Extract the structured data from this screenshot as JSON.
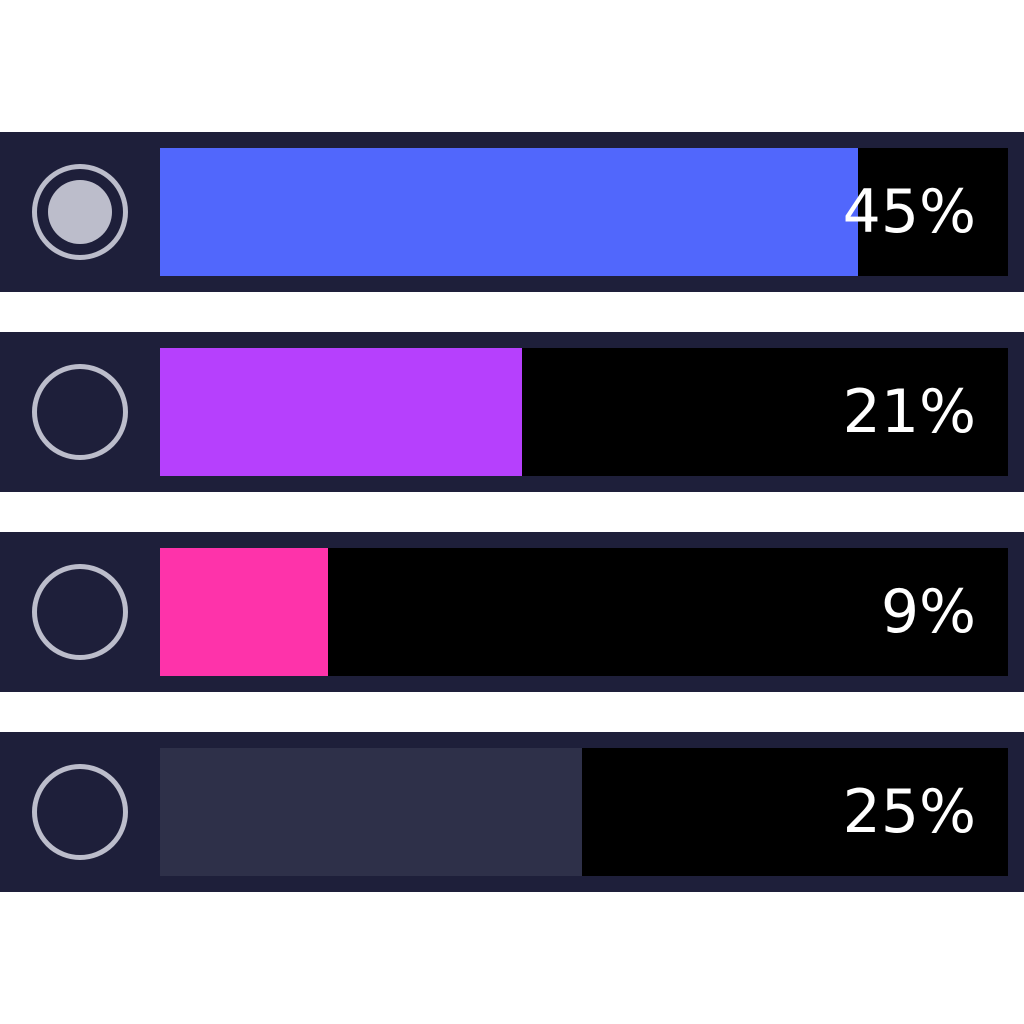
{
  "poll": {
    "options": [
      {
        "percent_label": "45%",
        "fraction": 0.823,
        "color": "#5167fc",
        "selected": true
      },
      {
        "percent_label": "21%",
        "fraction": 0.427,
        "color": "#b640fd",
        "selected": false
      },
      {
        "percent_label": "9%",
        "fraction": 0.198,
        "color": "#fe33aa",
        "selected": false
      },
      {
        "percent_label": "25%",
        "fraction": 0.498,
        "color": "#2e3049",
        "selected": false
      }
    ]
  }
}
